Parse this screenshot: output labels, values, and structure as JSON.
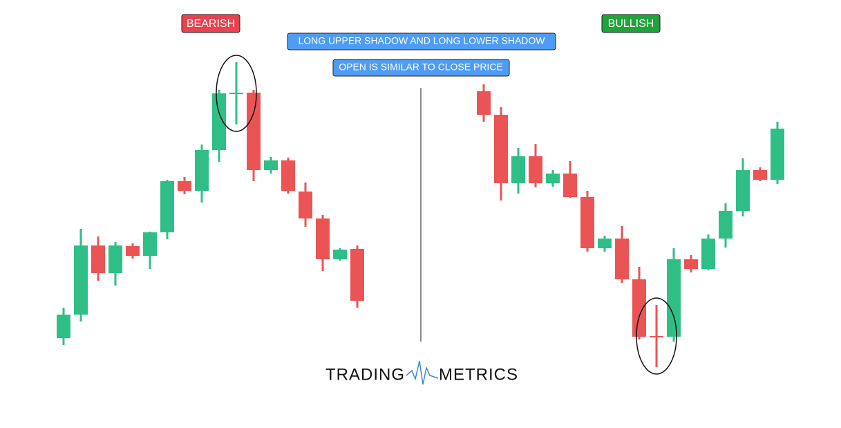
{
  "chart_data": [
    {
      "type": "candlestick",
      "title": "BEARISH",
      "title_color": "#e8434f",
      "up_color": "#2fbf86",
      "down_color": "#ea5455",
      "open": [
        111,
        145,
        245,
        205,
        244,
        230,
        264,
        338,
        324,
        383,
        464,
        466,
        354,
        368,
        323,
        284,
        225,
        240
      ],
      "high": [
        155,
        269,
        258,
        250,
        248,
        265,
        340,
        344,
        391,
        470,
        510,
        470,
        373,
        372,
        336,
        289,
        241,
        245
      ],
      "low": [
        101,
        135,
        194,
        187,
        226,
        211,
        254,
        319,
        307,
        366,
        420,
        338,
        349,
        320,
        272,
        208,
        223,
        155
      ],
      "close": [
        145,
        245,
        205,
        245,
        230,
        264,
        338,
        324,
        383,
        465,
        466,
        354,
        368,
        324,
        284,
        225,
        239,
        165
      ]
    },
    {
      "type": "candlestick",
      "title": "BULLISH",
      "title_color": "#1fa33a",
      "up_color": "#2fbf86",
      "down_color": "#ea5455",
      "open": [
        468,
        434,
        335,
        374,
        335,
        349,
        315,
        241,
        255,
        196,
        114,
        113,
        225,
        211,
        255,
        295,
        354,
        340
      ],
      "high": [
        478,
        445,
        386,
        392,
        354,
        367,
        324,
        259,
        273,
        214,
        159,
        241,
        231,
        261,
        306,
        371,
        358,
        424
      ],
      "low": [
        424,
        310,
        320,
        329,
        330,
        314,
        236,
        236,
        191,
        109,
        69,
        106,
        206,
        209,
        242,
        287,
        338,
        334
      ],
      "close": [
        434,
        335,
        374,
        335,
        349,
        315,
        241,
        255,
        196,
        113,
        112,
        225,
        211,
        255,
        295,
        354,
        340,
        414
      ]
    }
  ],
  "annotations": [
    "LONG UPPER SHADOW AND LONG LOWER SHADOW",
    "OPEN IS SIMILAR TO CLOSE PRICE"
  ],
  "brand": {
    "left": "TRADING",
    "right": "METRICS"
  }
}
